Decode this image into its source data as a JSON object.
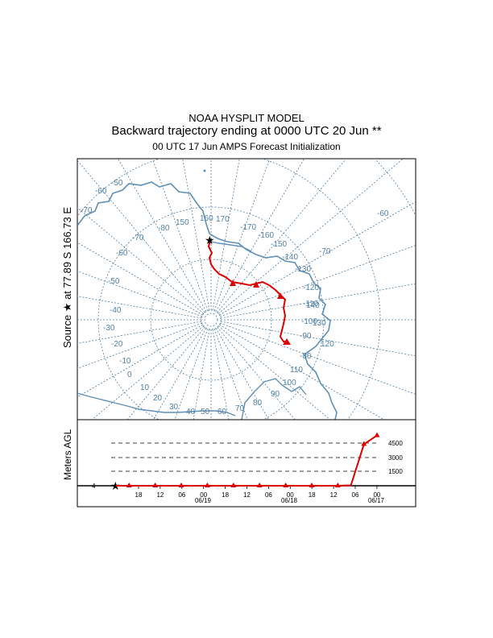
{
  "header": {
    "model": "NOAA HYSPLIT MODEL",
    "trajectory": "Backward trajectory ending at 0000 UTC 20 Jun **",
    "init": "00 UTC 17 Jun    AMPS  Forecast Initialization"
  },
  "source_label": "Source ★ at  77.89 S  166.73 E",
  "colors": {
    "grid": "#4f7fa6",
    "coast": "#5f8fb6",
    "trajectory": "#dd0000"
  },
  "map": {
    "longitude_labels": [
      "150",
      "160",
      "170",
      "-170",
      "-160",
      "-150",
      "-140",
      "-130",
      "-120",
      "-110",
      "-100",
      "-90",
      "-80",
      "-70",
      "-60",
      "-50",
      "-40",
      "-30",
      "-20",
      "-10",
      "0",
      "10",
      "20",
      "30",
      "40",
      "50",
      "60",
      "70",
      "80",
      "90",
      "100",
      "110",
      "120",
      "130",
      "140",
      "-60",
      "-70",
      "-80",
      "-70",
      "-60",
      "-50"
    ]
  },
  "height_panel": {
    "ylabel": "Meters AGL",
    "levels": [
      "4500",
      "3000",
      "1500"
    ],
    "time_labels": [
      "18",
      "12",
      "06",
      "00",
      "18",
      "12",
      "06",
      "00",
      "18",
      "12",
      "06",
      "00"
    ],
    "date_labels": [
      "06/19",
      "06/18",
      "06/17"
    ],
    "start_marker": "4",
    "heights_m": [
      4,
      4,
      4,
      4,
      4,
      4,
      4,
      4,
      4,
      4,
      4,
      4,
      4,
      4,
      4,
      4,
      4,
      4,
      40,
      4300,
      5200
    ]
  }
}
